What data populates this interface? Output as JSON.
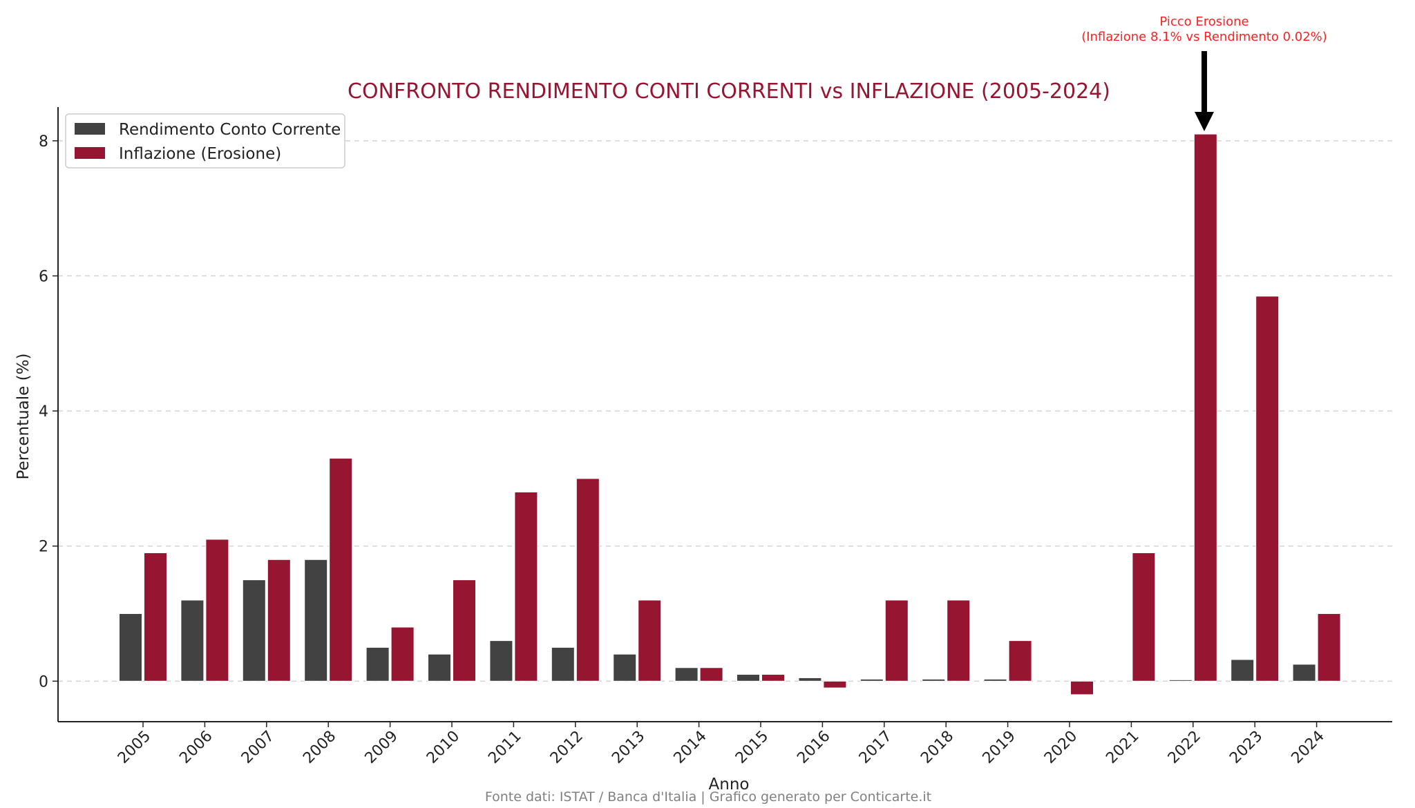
{
  "chart_data": {
    "type": "bar",
    "title": "CONFRONTO RENDIMENTO CONTI CORRENTI vs INFLAZIONE (2005-2024)",
    "xlabel": "Anno",
    "ylabel": "Percentuale (%)",
    "ylim": [
      -0.6,
      8.5
    ],
    "yticks": [
      0,
      2,
      4,
      6,
      8
    ],
    "grid": "horizontal dashed",
    "legend_position": "top-left",
    "categories": [
      "2005",
      "2006",
      "2007",
      "2008",
      "2009",
      "2010",
      "2011",
      "2012",
      "2013",
      "2014",
      "2015",
      "2016",
      "2017",
      "2018",
      "2019",
      "2020",
      "2021",
      "2022",
      "2023",
      "2024"
    ],
    "series": [
      {
        "name": "Rendimento Conto Corrente",
        "color": "#424242",
        "values": [
          1.0,
          1.2,
          1.5,
          1.8,
          0.5,
          0.4,
          0.6,
          0.5,
          0.4,
          0.2,
          0.1,
          0.05,
          0.03,
          0.03,
          0.03,
          0.0,
          0.0,
          0.02,
          0.32,
          0.25
        ]
      },
      {
        "name": "Inflazione (Erosione)",
        "color": "#961631",
        "values": [
          1.9,
          2.1,
          1.8,
          3.3,
          0.8,
          1.5,
          2.8,
          3.0,
          1.2,
          0.2,
          0.1,
          -0.1,
          1.2,
          1.2,
          0.6,
          -0.2,
          1.9,
          8.1,
          5.7,
          1.0
        ]
      }
    ],
    "annotation": {
      "line1": "Picco Erosione",
      "line2": "(Inflazione 8.1% vs Rendimento 0.02%)",
      "target_year": "2022",
      "target_value": 8.1,
      "color": "#ff2020"
    },
    "source": "Fonte dati: ISTAT / Banca d'Italia | Grafico generato per Conticarte.it",
    "title_color": "#961631",
    "source_color": "#808080"
  }
}
